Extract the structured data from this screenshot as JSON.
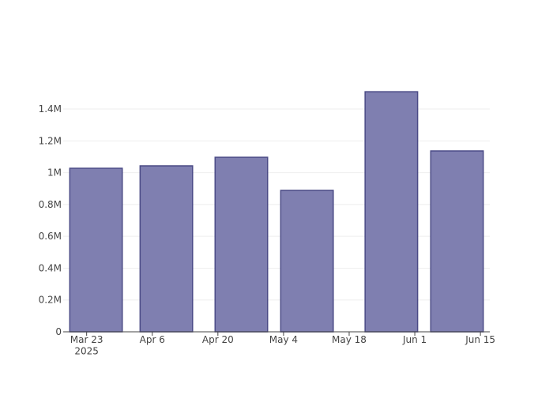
{
  "chart_data": {
    "type": "bar",
    "x": [
      "2025-03-25",
      "2025-04-09",
      "2025-04-25",
      "2025-05-09",
      "2025-05-27",
      "2025-06-10"
    ],
    "values": [
      1028000,
      1043000,
      1097000,
      889000,
      1509000,
      1137000
    ],
    "color": "#7f7fb0",
    "edge_color": "#4b4b86",
    "xlim": [
      "2025-03-18",
      "2025-06-17"
    ],
    "xticks": [
      {
        "value": "2025-03-23",
        "label": "Mar 23\n2025"
      },
      {
        "value": "2025-04-06",
        "label": "Apr 6"
      },
      {
        "value": "2025-04-20",
        "label": "Apr 20"
      },
      {
        "value": "2025-05-04",
        "label": "May 4"
      },
      {
        "value": "2025-05-18",
        "label": "May 18"
      },
      {
        "value": "2025-06-01",
        "label": "Jun 1"
      },
      {
        "value": "2025-06-15",
        "label": "Jun 15"
      }
    ],
    "ylim": [
      0,
      1589000
    ],
    "yticks": [
      0,
      {
        "value": 200000,
        "label": "0.2M"
      },
      {
        "value": 400000,
        "label": "0.4M"
      },
      {
        "value": 600000,
        "label": "0.6M"
      },
      {
        "value": 800000,
        "label": "0.8M"
      },
      {
        "value": 1000000,
        "label": "1M"
      },
      {
        "value": 1200000,
        "label": "1.2M"
      },
      {
        "value": 1400000,
        "label": "1.4M"
      }
    ],
    "grid": true
  }
}
